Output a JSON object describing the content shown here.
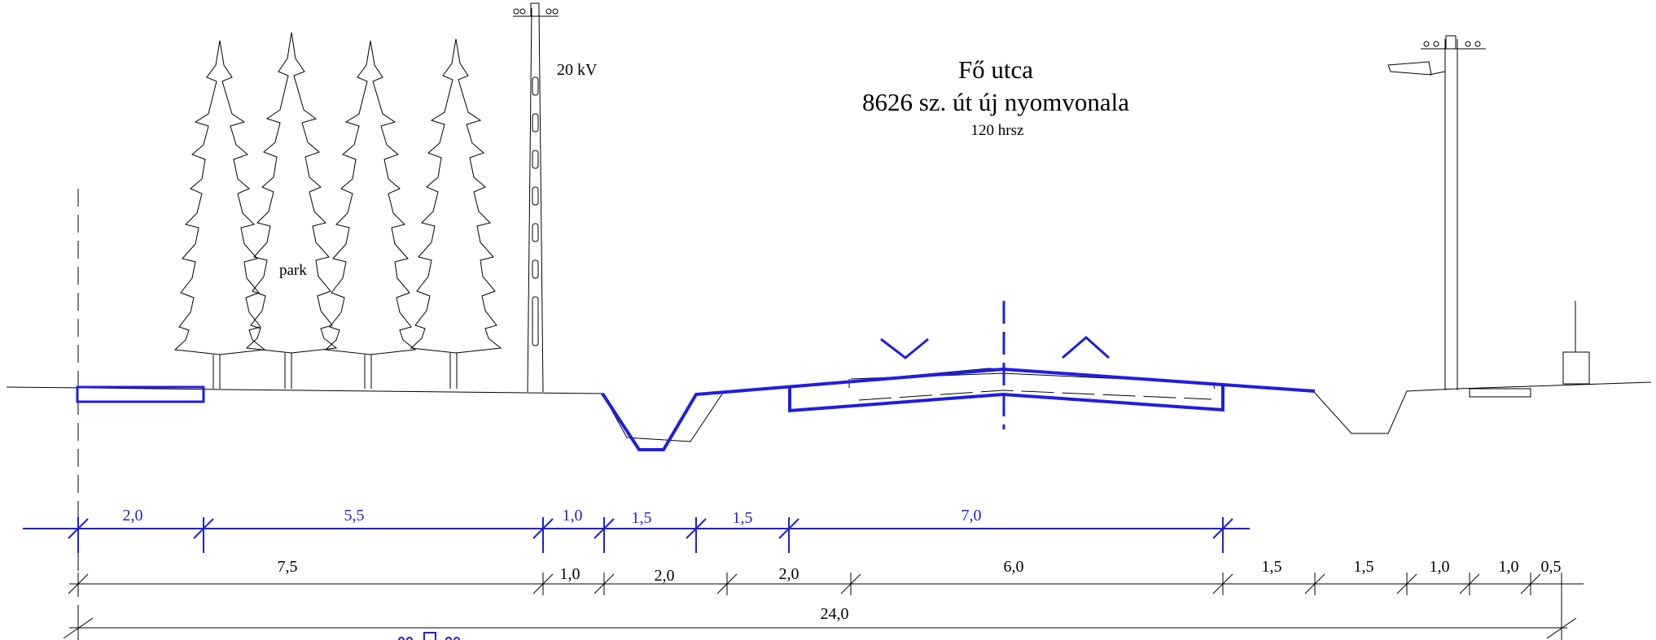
{
  "title": {
    "street_name": "Fő utca",
    "road_description": "8626 sz. út új nyomvonala",
    "parcel": "120 hrsz"
  },
  "labels": {
    "power_line": "20 kV",
    "park": "park"
  },
  "dimensions": {
    "new_row": [
      "2,0",
      "5,5",
      "1,0",
      "1,5",
      "1,5",
      "7,0"
    ],
    "existing_row": [
      "7,5",
      "1,0",
      "2,0",
      "2,0",
      "6,0",
      "1,5",
      "1,5",
      "1,0",
      "1,0",
      "0,5"
    ],
    "total": "24,0"
  },
  "colors": {
    "existing": "#000000",
    "new_design": "#1e1ee0"
  }
}
